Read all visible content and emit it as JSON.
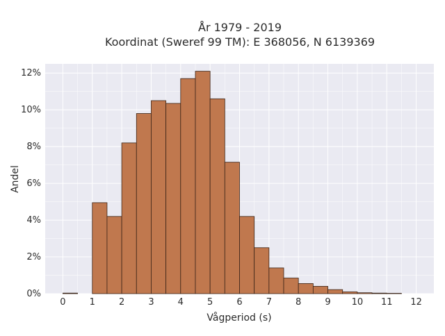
{
  "chart_data": {
    "type": "bar",
    "title_lines": [
      "År 1979 - 2019",
      "Koordinat (Sweref 99 TM): E 368056, N 6139369"
    ],
    "xlabel": "Vågperiod (s)",
    "ylabel": "Andel",
    "xlim": [
      -0.6,
      12.6
    ],
    "ylim": [
      0,
      12.5
    ],
    "x_ticks": [
      0,
      1,
      2,
      3,
      4,
      5,
      6,
      7,
      8,
      9,
      10,
      11,
      12
    ],
    "y_ticks": [
      0,
      2,
      4,
      6,
      8,
      10,
      12
    ],
    "y_tick_labels": [
      "0%",
      "2%",
      "4%",
      "6%",
      "8%",
      "10%",
      "12%"
    ],
    "bin_width": 0.5,
    "bin_starts": [
      0,
      1,
      1.5,
      2,
      2.5,
      3,
      3.5,
      4,
      4.5,
      5,
      5.5,
      6,
      6.5,
      7,
      7.5,
      8,
      8.5,
      9,
      9.5,
      10,
      10.5,
      11
    ],
    "values": [
      0.03,
      4.95,
      4.2,
      8.2,
      9.8,
      10.5,
      10.35,
      11.7,
      12.1,
      10.6,
      7.15,
      4.2,
      2.5,
      1.4,
      0.85,
      0.55,
      0.4,
      0.22,
      0.1,
      0.05,
      0.03,
      0.02
    ],
    "unit": "%",
    "grid": true,
    "colors": {
      "bar_fill": "#c0784e",
      "bar_edge": "#3a2418",
      "plot_background": "#eaeaf2",
      "grid": "#ffffff"
    }
  }
}
